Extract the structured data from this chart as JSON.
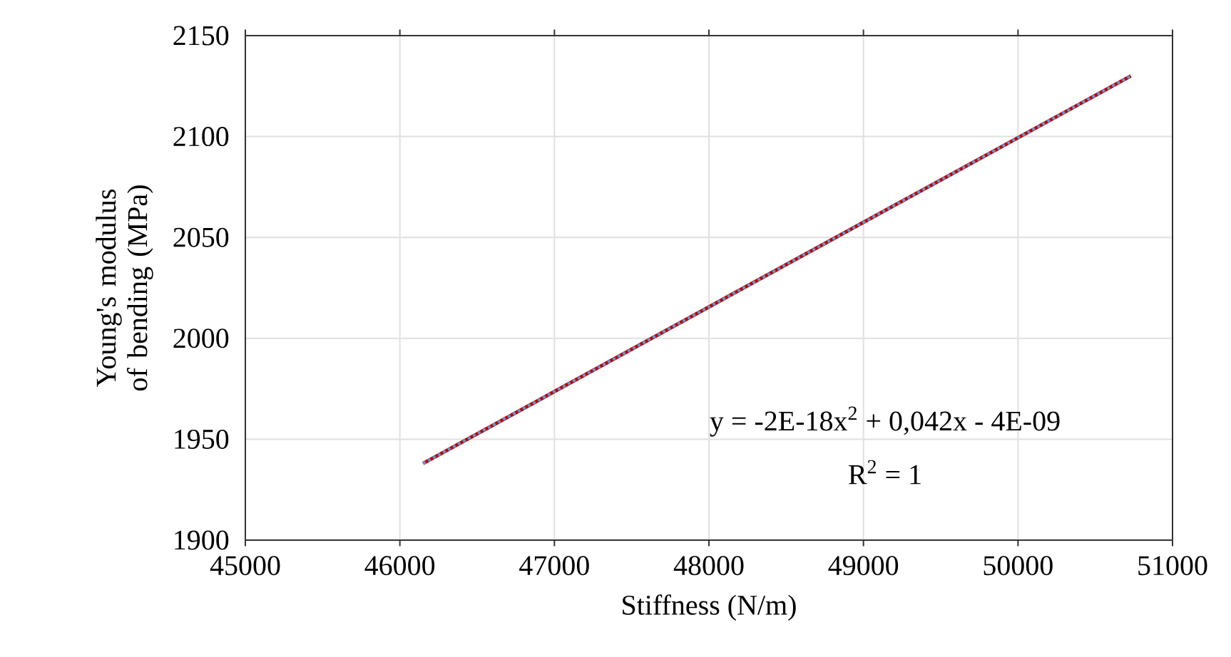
{
  "chart_data": {
    "type": "line",
    "xlabel": "Stiffness (N/m)",
    "ylabel": "Young's modulus of bending (MPa)",
    "x": [
      46150,
      50730
    ],
    "series": [
      {
        "color": "#c00000",
        "values": [
          1938,
          2130
        ],
        "line_style": "solid"
      },
      {
        "color": "#5b9bd5",
        "values": [
          1938,
          2130
        ],
        "line_style": "dotted"
      }
    ],
    "annotations": [
      "y = -2E-18x$^{2}$ + 0,042x - 4E-09",
      "R$^{2}$ = 1"
    ],
    "xlim": [
      45000,
      51000
    ],
    "ylim": [
      1900,
      2150
    ],
    "xticks": [
      45000,
      46000,
      47000,
      48000,
      49000,
      50000,
      51000
    ],
    "yticks": [
      1900,
      1950,
      2000,
      2050,
      2100,
      2150
    ],
    "grid": true
  }
}
